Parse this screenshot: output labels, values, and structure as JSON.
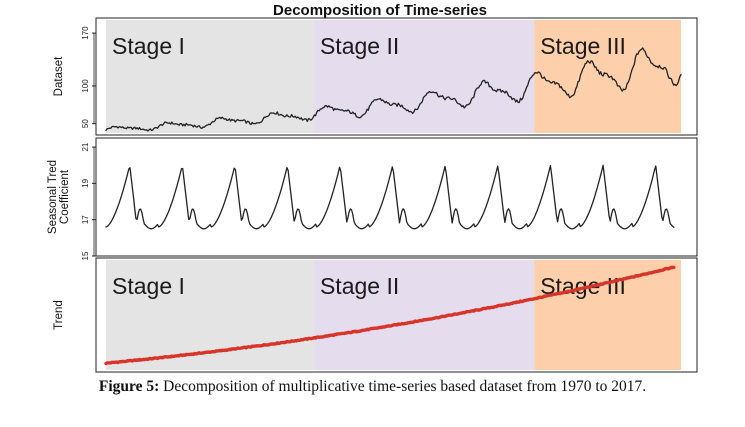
{
  "chart_data": {
    "type": "line",
    "title": "Decomposition of Time-series",
    "x_range": [
      1970,
      2017
    ],
    "stages": [
      {
        "label": "Stage I",
        "color": "#e4e4e4",
        "start": 1970,
        "end": 1987
      },
      {
        "label": "Stage II",
        "color": "#e5ddee",
        "start": 1987,
        "end": 2005
      },
      {
        "label": "Stage III",
        "color": "#fdcfab",
        "start": 2005,
        "end": 2017
      }
    ],
    "panels": [
      {
        "key": "dataset",
        "ylabel_lines": [
          "Dataset"
        ],
        "ylim": [
          35,
          190
        ],
        "yticks": [
          50,
          100,
          170
        ],
        "show_stages": true,
        "series": {
          "color": "#222222",
          "kind": "dataset",
          "trend_start": 42,
          "trend_end": 132,
          "season_amp": 0.17
        }
      },
      {
        "key": "seasonal",
        "ylabel_lines": [
          "Seasonal Tred",
          "Coefficient"
        ],
        "ylim": [
          15,
          21.5
        ],
        "yticks": [
          15,
          17,
          19,
          21
        ],
        "show_stages": false,
        "series": {
          "color": "#222222",
          "kind": "seasonal"
        }
      },
      {
        "key": "trend",
        "ylabel_lines": [
          "Trend"
        ],
        "ylim": [
          30,
          185
        ],
        "yticks": [],
        "show_stages": true,
        "series": {
          "color": "#d8352a",
          "kind": "trend",
          "trend_start": 42,
          "trend_end": 175
        }
      }
    ]
  },
  "caption": {
    "label": "Figure 5:",
    "text": " Decomposition of multiplicative time-series based dataset from 1970 to 2017."
  }
}
